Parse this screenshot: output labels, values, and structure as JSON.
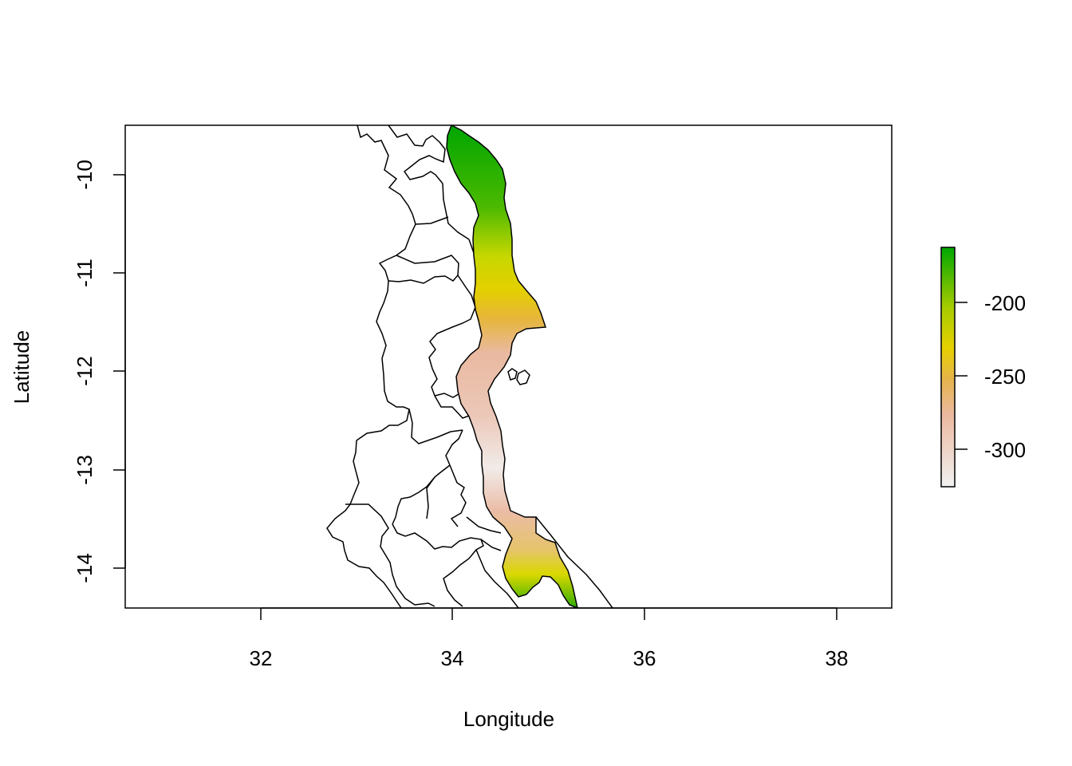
{
  "chart_data": {
    "type": "heatmap",
    "xlabel": "Longitude",
    "ylabel": "Latitude",
    "xlim": [
      30.6,
      38.6
    ],
    "ylim": [
      -14.4,
      -9.5
    ],
    "x_ticks": [
      32,
      34,
      36,
      38
    ],
    "x_tick_labels": [
      "32",
      "34",
      "36",
      "38"
    ],
    "y_ticks": [
      -10,
      -11,
      -12,
      -13,
      -14
    ],
    "y_tick_labels": [
      "-10",
      "-11",
      "-12",
      "-13",
      "-14"
    ],
    "legend": {
      "placement": "right",
      "range": [
        -325,
        -165
      ],
      "ticks": [
        -200,
        -250,
        -300
      ],
      "tick_labels": [
        "-200",
        "-250",
        "-300"
      ],
      "colors": [
        "#f2f2f2",
        "#e3a989",
        "#e6c700",
        "#00a600"
      ]
    },
    "grid": false,
    "lake_values_by_latitude": [
      {
        "lat": -9.55,
        "value": -170
      },
      {
        "lat": -10.0,
        "value": -185
      },
      {
        "lat": -10.5,
        "value": -210
      },
      {
        "lat": -10.9,
        "value": -240
      },
      {
        "lat": -11.3,
        "value": -255
      },
      {
        "lat": -11.6,
        "value": -280
      },
      {
        "lat": -12.0,
        "value": -305
      },
      {
        "lat": -12.5,
        "value": -310
      },
      {
        "lat": -13.0,
        "value": -322
      },
      {
        "lat": -13.5,
        "value": -305
      },
      {
        "lat": -13.8,
        "value": -280
      },
      {
        "lat": -14.1,
        "value": -240
      },
      {
        "lat": -14.35,
        "value": -195
      }
    ]
  }
}
